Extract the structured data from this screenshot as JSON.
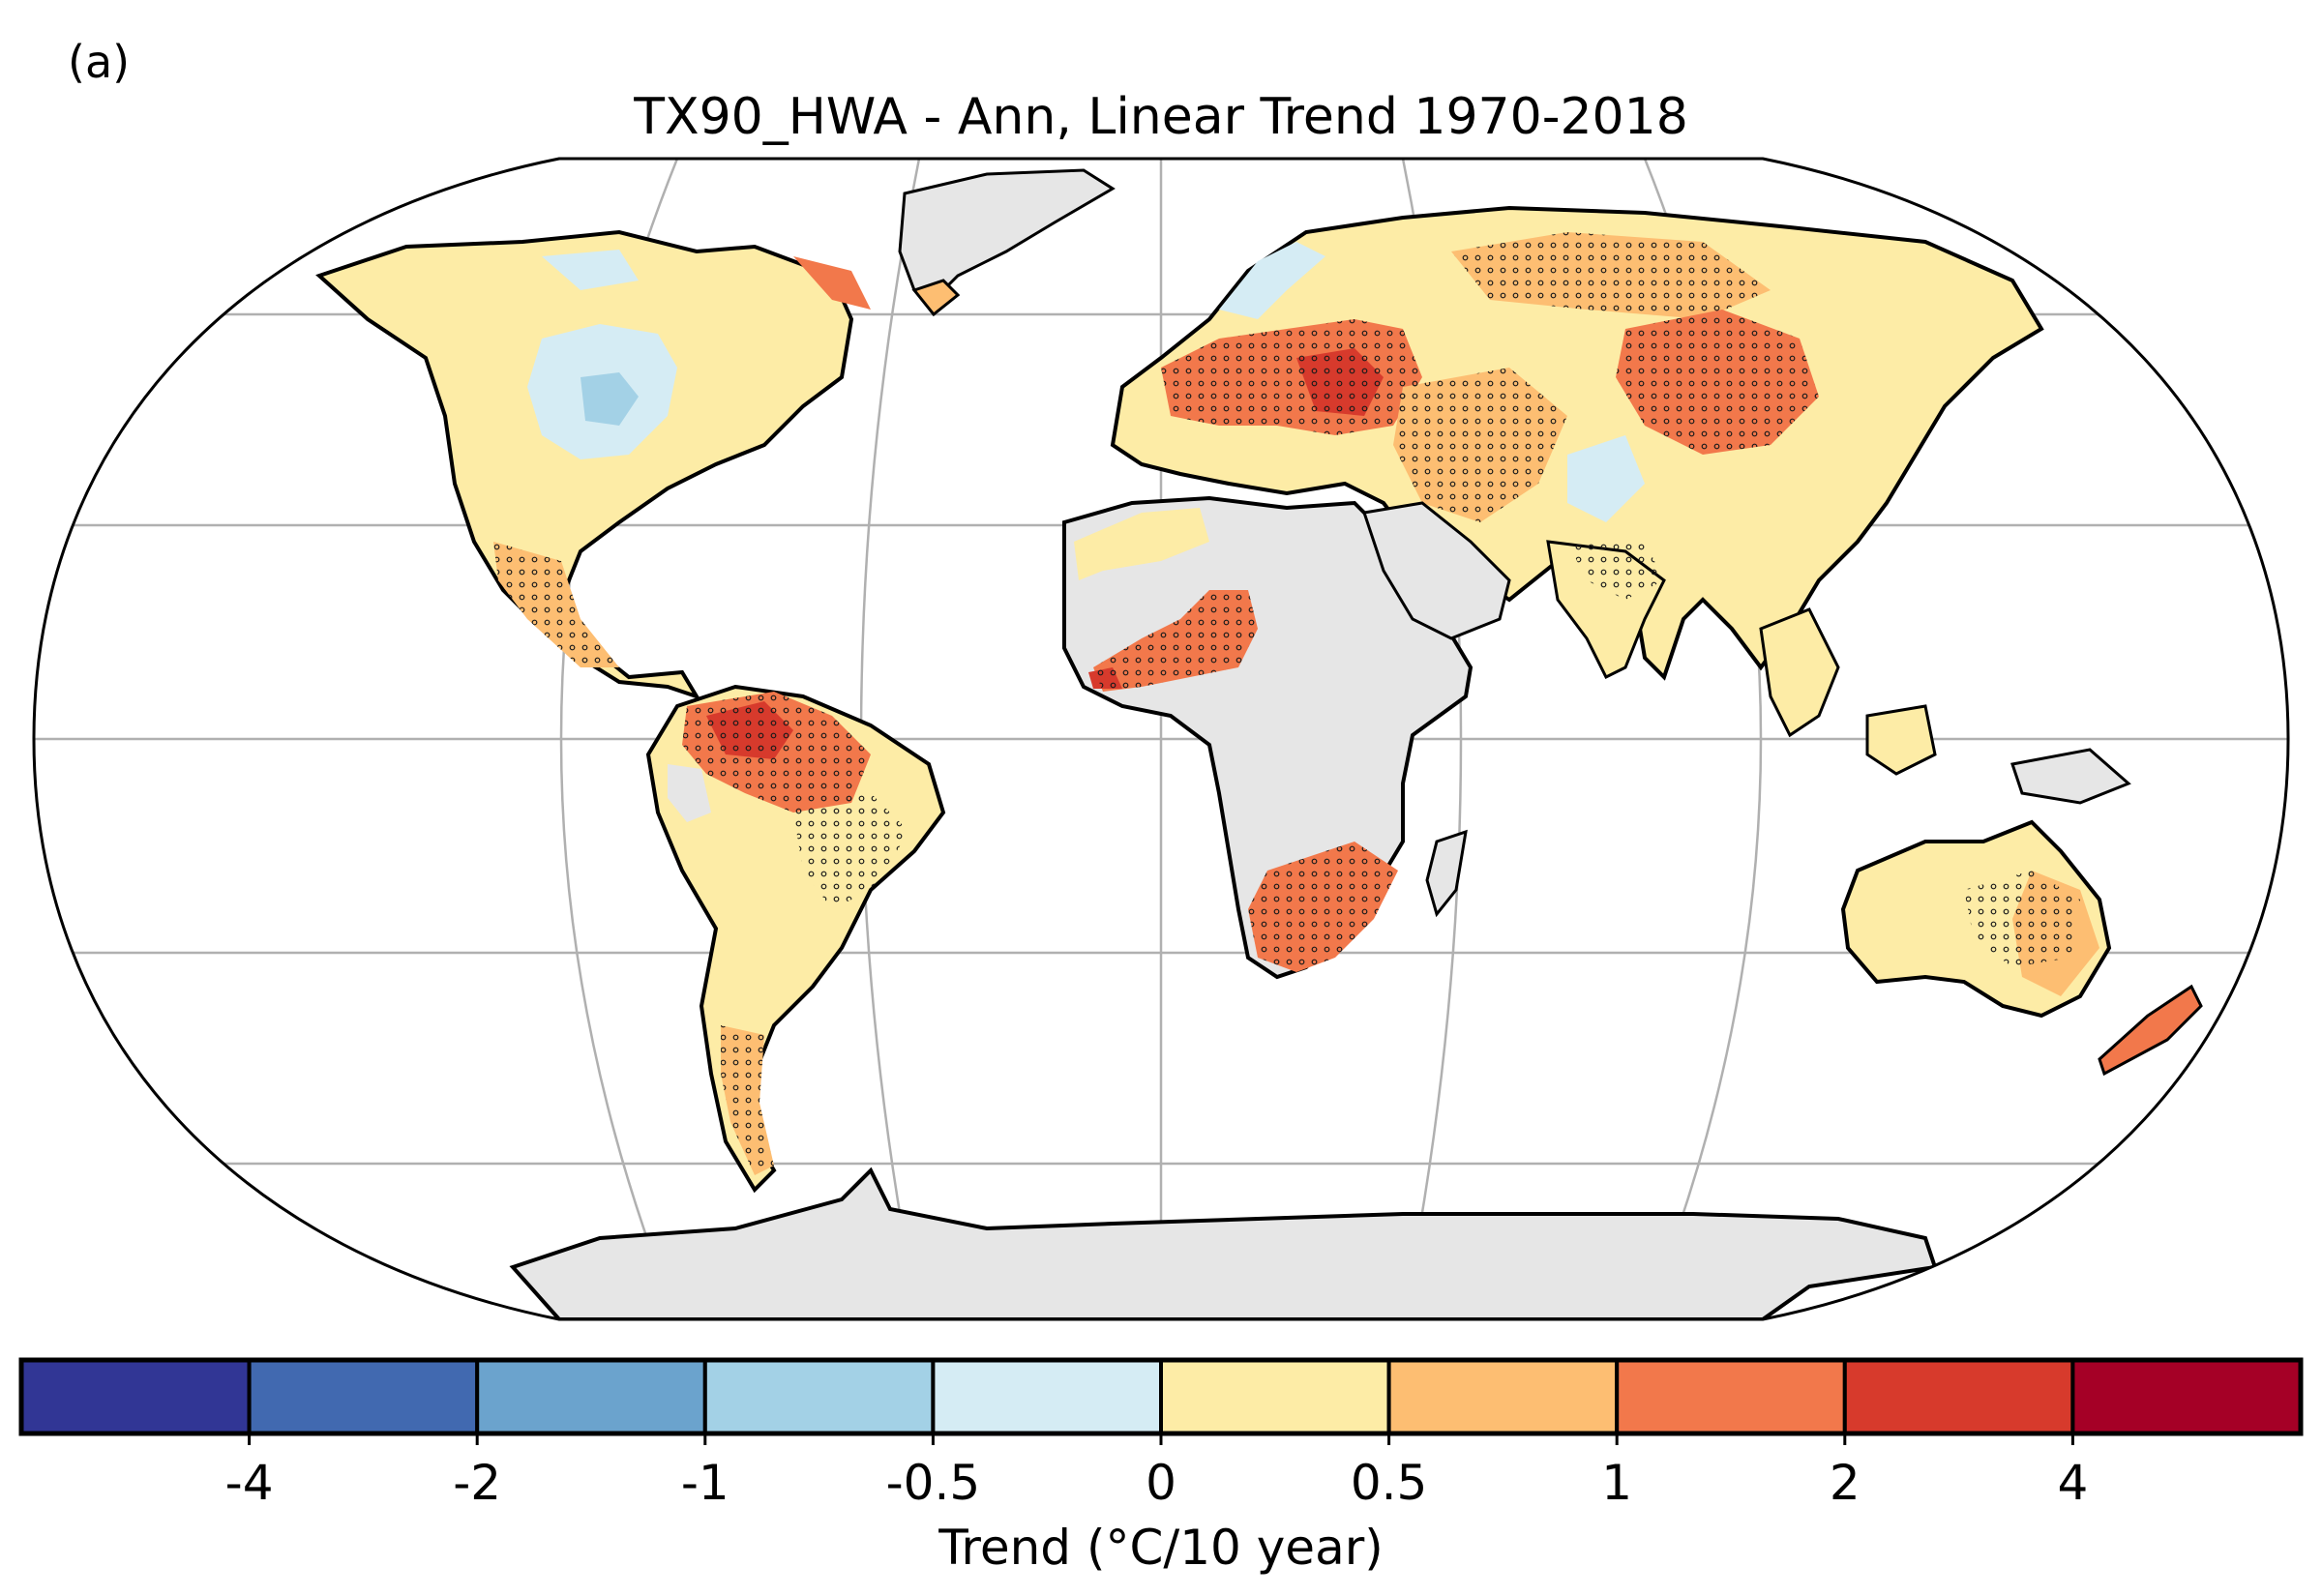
{
  "panel_label": "(a)",
  "title": "TX90_HWA - Ann, Linear Trend 1970-2018",
  "colorbar": {
    "label": "Trend (°C/10 year)",
    "tick_labels": [
      "-4",
      "-2",
      "-1",
      "-0.5",
      "0",
      "0.5",
      "1",
      "2",
      "4"
    ],
    "bins": [
      {
        "range": "< -4",
        "color": "#313695"
      },
      {
        "range": "-4 to -2",
        "color": "#4169b0"
      },
      {
        "range": "-2 to -1",
        "color": "#6ba3cd"
      },
      {
        "range": "-1 to -0.5",
        "color": "#a3d1e6"
      },
      {
        "range": "-0.5 to 0",
        "color": "#d5ecf4"
      },
      {
        "range": "0 to 0.5",
        "color": "#fdeca6"
      },
      {
        "range": "0.5 to 1",
        "color": "#fdbe72"
      },
      {
        "range": "1 to 2",
        "color": "#f2784b"
      },
      {
        "range": "2 to 4",
        "color": "#d73a2c"
      },
      {
        "range": "> 4",
        "color": "#a50026"
      }
    ]
  },
  "map": {
    "projection": "Robinson",
    "no_data_color": "#e6e6e6",
    "ocean_color": "#ffffff",
    "gridline_color": "#b0b0b0",
    "stippling": "statistically significant trend",
    "regions": [
      {
        "name": "North America",
        "trend_bin": "0 to 0.5"
      },
      {
        "name": "Central Canada",
        "trend_bin": "-0.5 to 0"
      },
      {
        "name": "Mexico",
        "trend_bin": "0.5 to 1"
      },
      {
        "name": "Amazon",
        "trend_bin": "1 to 2"
      },
      {
        "name": "Southern South America",
        "trend_bin": "0 to 0.5"
      },
      {
        "name": "Europe",
        "trend_bin": "1 to 2"
      },
      {
        "name": "Russia",
        "trend_bin": "0.5 to 1"
      },
      {
        "name": "Mongolia",
        "trend_bin": "1 to 2"
      },
      {
        "name": "West Africa",
        "trend_bin": "1 to 2"
      },
      {
        "name": "Southern Africa",
        "trend_bin": "1 to 2"
      },
      {
        "name": "India",
        "trend_bin": "0 to 0.5"
      },
      {
        "name": "Australia",
        "trend_bin": "0 to 0.5"
      },
      {
        "name": "Greenland",
        "trend_bin": "no data"
      },
      {
        "name": "Sahara",
        "trend_bin": "no data"
      },
      {
        "name": "Antarctica",
        "trend_bin": "no data"
      }
    ]
  }
}
